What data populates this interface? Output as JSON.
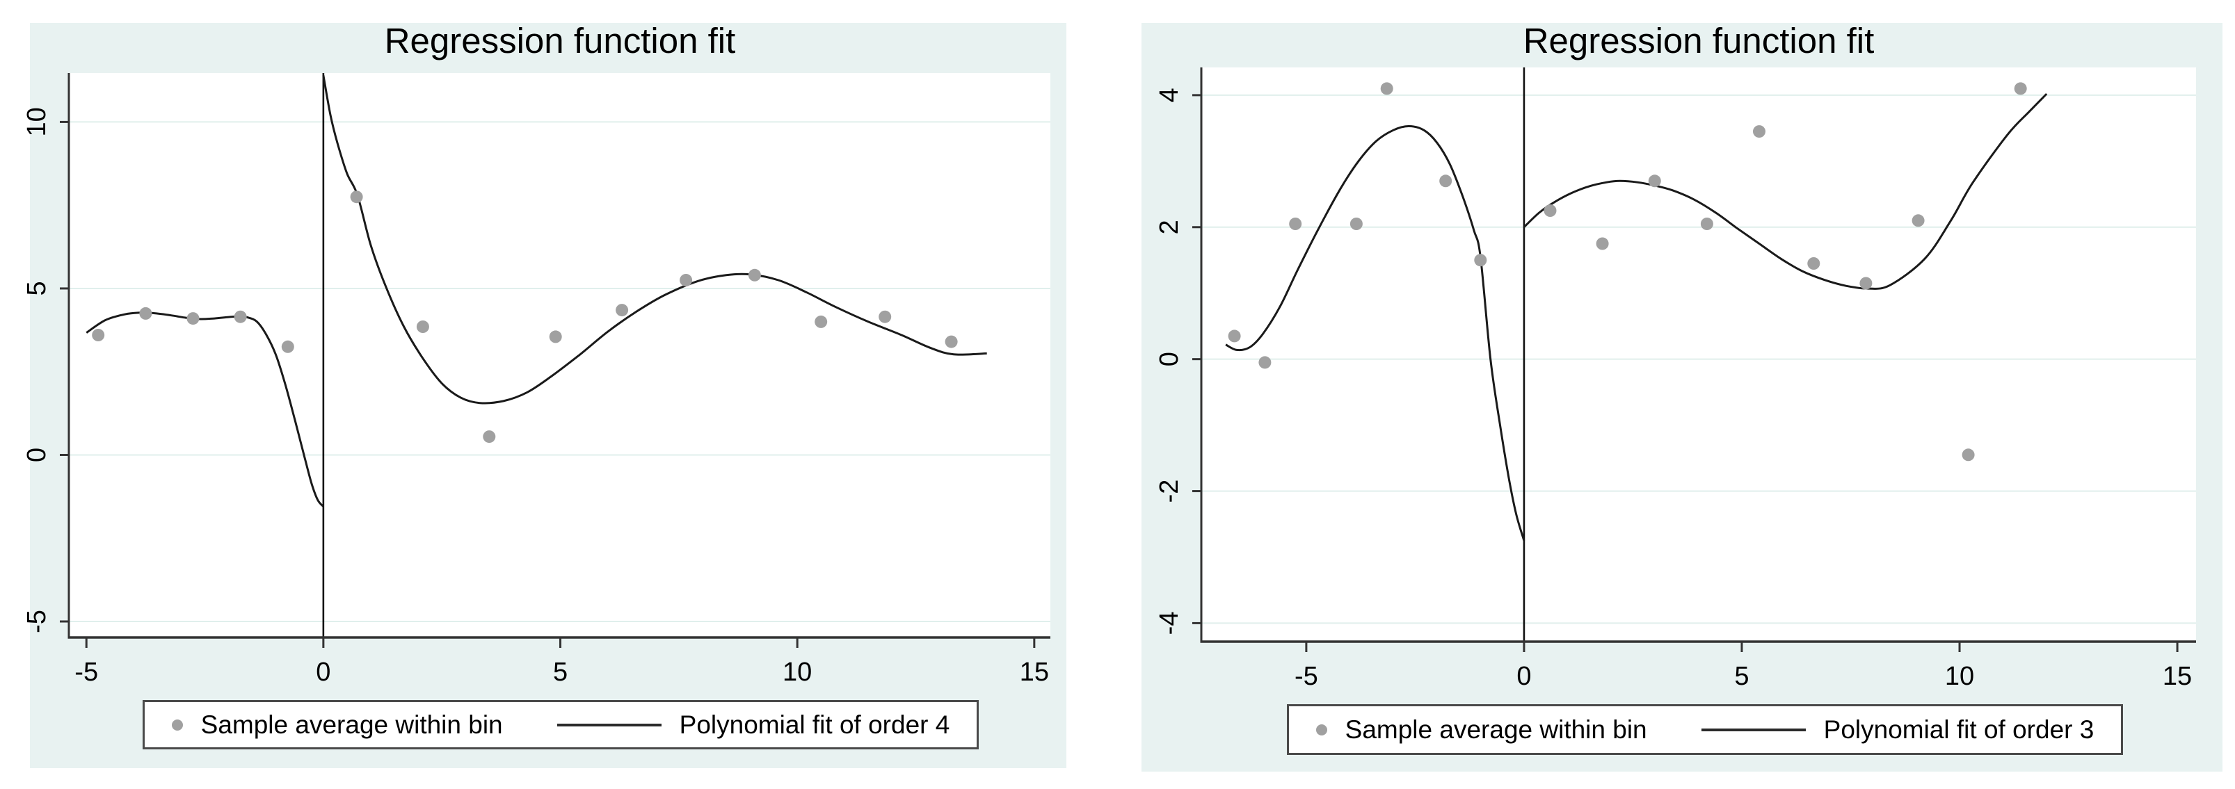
{
  "figure": {
    "kind": "Stata rdplot side-by-side regression discontinuity figures"
  },
  "colors": {
    "panel_background": "#e8f2f1",
    "plot_background": "#ffffff",
    "gridline": "#e0efec",
    "scatter_marker": "#a0a0a0",
    "fit_line": "#1a1a1a",
    "cutoff_line": "#111111",
    "axis_spine": "#333333",
    "text": "#000000",
    "legend_border": "#4a4a4a"
  },
  "chart_data": [
    {
      "type": "scatter",
      "title": "Regression function fit",
      "xlabel": "",
      "ylabel": "",
      "xlim": [
        -5.37,
        15.34
      ],
      "ylim": [
        -5.48,
        11.47
      ],
      "xticks": [
        -5,
        0,
        5,
        10,
        15
      ],
      "yticks": [
        -5,
        0,
        5,
        10
      ],
      "grid": "horizontal",
      "cutoff_x": 0,
      "legend_position": "bottom-center",
      "legend": {
        "marker_label": "Sample average within bin",
        "line_label": "Polynomial fit of order 4"
      },
      "scatter": [
        [
          -4.75,
          3.6
        ],
        [
          -3.75,
          4.25
        ],
        [
          -2.75,
          4.1
        ],
        [
          -1.75,
          4.15
        ],
        [
          -0.75,
          3.25
        ],
        [
          0.7,
          7.75
        ],
        [
          2.1,
          3.85
        ],
        [
          3.5,
          0.55
        ],
        [
          4.9,
          3.55
        ],
        [
          6.3,
          4.35
        ],
        [
          7.65,
          5.25
        ],
        [
          9.1,
          5.4
        ],
        [
          10.5,
          4.0
        ],
        [
          11.85,
          4.15
        ],
        [
          13.25,
          3.4
        ]
      ],
      "fit_left": [
        [
          -5.0,
          3.67
        ],
        [
          -4.6,
          4.05
        ],
        [
          -4.2,
          4.22
        ],
        [
          -3.9,
          4.27
        ],
        [
          -3.6,
          4.26
        ],
        [
          -3.2,
          4.19
        ],
        [
          -2.9,
          4.12
        ],
        [
          -2.6,
          4.08
        ],
        [
          -2.3,
          4.1
        ],
        [
          -2.0,
          4.14
        ],
        [
          -1.8,
          4.16
        ],
        [
          -1.6,
          4.13
        ],
        [
          -1.4,
          4.0
        ],
        [
          -1.2,
          3.6
        ],
        [
          -1.0,
          3.0
        ],
        [
          -0.8,
          2.1
        ],
        [
          -0.6,
          1.05
        ],
        [
          -0.4,
          -0.05
        ],
        [
          -0.25,
          -0.85
        ],
        [
          -0.12,
          -1.35
        ],
        [
          0.0,
          -1.55
        ]
      ],
      "fit_right": [
        [
          0.0,
          11.4
        ],
        [
          0.15,
          10.2
        ],
        [
          0.3,
          9.35
        ],
        [
          0.5,
          8.45
        ],
        [
          0.72,
          7.8
        ],
        [
          1.0,
          6.3
        ],
        [
          1.32,
          5.05
        ],
        [
          1.7,
          3.85
        ],
        [
          2.1,
          2.9
        ],
        [
          2.5,
          2.15
        ],
        [
          2.9,
          1.72
        ],
        [
          3.3,
          1.56
        ],
        [
          3.8,
          1.62
        ],
        [
          4.3,
          1.88
        ],
        [
          4.8,
          2.35
        ],
        [
          5.4,
          3.0
        ],
        [
          6.0,
          3.7
        ],
        [
          6.6,
          4.3
        ],
        [
          7.2,
          4.8
        ],
        [
          7.9,
          5.22
        ],
        [
          8.5,
          5.4
        ],
        [
          9.0,
          5.42
        ],
        [
          9.6,
          5.25
        ],
        [
          10.2,
          4.88
        ],
        [
          10.8,
          4.45
        ],
        [
          11.5,
          4.0
        ],
        [
          12.2,
          3.6
        ],
        [
          12.8,
          3.22
        ],
        [
          13.3,
          3.02
        ],
        [
          14.0,
          3.05
        ]
      ]
    },
    {
      "type": "scatter",
      "title": "Regression function fit",
      "xlabel": "",
      "ylabel": "",
      "xlim": [
        -7.41,
        15.43
      ],
      "ylim": [
        -4.28,
        4.42
      ],
      "xticks": [
        -5,
        0,
        5,
        10,
        15
      ],
      "yticks": [
        -4,
        -2,
        0,
        2,
        4
      ],
      "grid": "horizontal",
      "cutoff_x": 0,
      "legend_position": "bottom-center",
      "legend": {
        "marker_label": "Sample average within bin",
        "line_label": "Polynomial fit of order 3"
      },
      "scatter": [
        [
          -6.65,
          0.35
        ],
        [
          -5.95,
          -0.05
        ],
        [
          -5.25,
          2.05
        ],
        [
          -3.85,
          2.05
        ],
        [
          -3.15,
          4.1
        ],
        [
          -1.8,
          2.7
        ],
        [
          -1.0,
          1.5
        ],
        [
          0.6,
          2.25
        ],
        [
          1.8,
          1.75
        ],
        [
          3.0,
          2.7
        ],
        [
          4.2,
          2.05
        ],
        [
          5.4,
          3.45
        ],
        [
          6.65,
          1.45
        ],
        [
          7.85,
          1.15
        ],
        [
          9.05,
          2.1
        ],
        [
          10.2,
          -1.45
        ],
        [
          11.4,
          4.1
        ]
      ],
      "fit_left": [
        [
          -6.85,
          0.22
        ],
        [
          -6.6,
          0.14
        ],
        [
          -6.3,
          0.18
        ],
        [
          -6.0,
          0.38
        ],
        [
          -5.6,
          0.8
        ],
        [
          -5.2,
          1.35
        ],
        [
          -4.7,
          2.0
        ],
        [
          -4.2,
          2.6
        ],
        [
          -3.8,
          3.0
        ],
        [
          -3.4,
          3.3
        ],
        [
          -3.0,
          3.47
        ],
        [
          -2.65,
          3.53
        ],
        [
          -2.3,
          3.47
        ],
        [
          -2.0,
          3.28
        ],
        [
          -1.7,
          2.95
        ],
        [
          -1.4,
          2.45
        ],
        [
          -1.15,
          1.95
        ],
        [
          -1.0,
          1.55
        ],
        [
          -0.77,
          0.0
        ],
        [
          -0.55,
          -1.0
        ],
        [
          -0.35,
          -1.8
        ],
        [
          -0.18,
          -2.35
        ],
        [
          0.0,
          -2.75
        ]
      ],
      "fit_right": [
        [
          0.0,
          2.0
        ],
        [
          0.35,
          2.22
        ],
        [
          0.7,
          2.38
        ],
        [
          1.1,
          2.52
        ],
        [
          1.5,
          2.62
        ],
        [
          1.9,
          2.68
        ],
        [
          2.2,
          2.7
        ],
        [
          2.6,
          2.68
        ],
        [
          3.0,
          2.63
        ],
        [
          3.4,
          2.56
        ],
        [
          3.9,
          2.42
        ],
        [
          4.4,
          2.22
        ],
        [
          4.9,
          1.98
        ],
        [
          5.4,
          1.75
        ],
        [
          5.9,
          1.52
        ],
        [
          6.4,
          1.33
        ],
        [
          6.9,
          1.2
        ],
        [
          7.4,
          1.11
        ],
        [
          7.9,
          1.07
        ],
        [
          8.4,
          1.12
        ],
        [
          9.2,
          1.52
        ],
        [
          9.8,
          2.1
        ],
        [
          10.3,
          2.67
        ],
        [
          11.1,
          3.4
        ],
        [
          11.6,
          3.75
        ],
        [
          12.0,
          4.02
        ]
      ]
    }
  ]
}
